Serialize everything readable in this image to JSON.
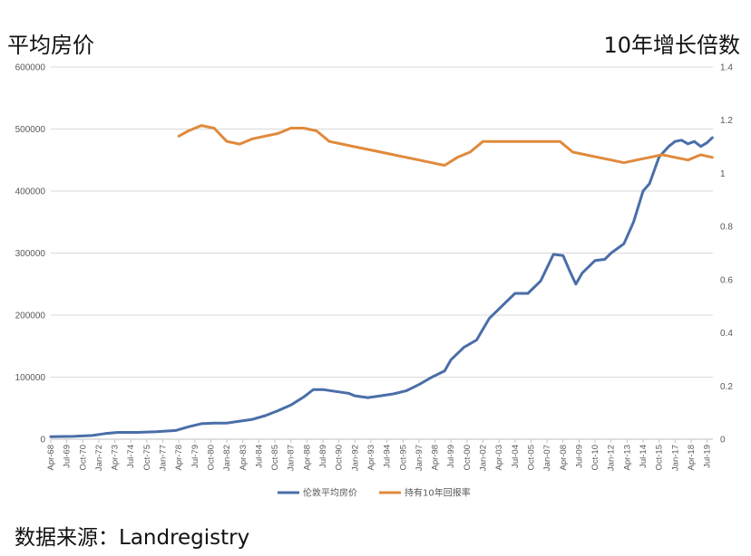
{
  "titles": {
    "left": "平均房价",
    "right": "10年增长倍数",
    "source": "数据来源：Landregistry"
  },
  "colors": {
    "price": "#4a6ea8",
    "ratio": "#e08a3c",
    "grid": "#d9d9d9",
    "tick": "#595959"
  },
  "chart_data": {
    "type": "line",
    "title": "",
    "x_start": "1968-04",
    "x_end": "2019-12",
    "x_ticks": [
      "Apr-68",
      "Jul-69",
      "Oct-70",
      "Jan-72",
      "Apr-73",
      "Jul-74",
      "Oct-75",
      "Jan-77",
      "Apr-78",
      "Jul-79",
      "Oct-80",
      "Jan-82",
      "Apr-83",
      "Jul-84",
      "Oct-85",
      "Jan-87",
      "Apr-88",
      "Jul-89",
      "Oct-90",
      "Jan-92",
      "Apr-93",
      "Jul-94",
      "Oct-95",
      "Jan-97",
      "Apr-98",
      "Jul-99",
      "Oct-00",
      "Jan-02",
      "Apr-03",
      "Jul-04",
      "Oct-05",
      "Jan-07",
      "Apr-08",
      "Jul-09",
      "Oct-10",
      "Jan-12",
      "Apr-13",
      "Jul-14",
      "Oct-15",
      "Jan-17",
      "Apr-18",
      "Jul-19"
    ],
    "y_left": {
      "min": 0,
      "max": 600000,
      "ticks": [
        "0",
        "100000",
        "200000",
        "300000",
        "400000",
        "500000",
        "600000"
      ]
    },
    "y_right": {
      "min": 0,
      "max": 1.4,
      "ticks": [
        "0",
        "0.2",
        "0.4",
        "0.6",
        "0.8",
        "1",
        "1.2",
        "1.4"
      ]
    },
    "series": [
      {
        "name": "伦敦平均房价",
        "axis": "left",
        "color": "#4a6ea8",
        "points": [
          [
            1968.25,
            4000
          ],
          [
            1970.0,
            4500
          ],
          [
            1971.5,
            6000
          ],
          [
            1972.5,
            9000
          ],
          [
            1973.5,
            11000
          ],
          [
            1975.0,
            11000
          ],
          [
            1976.5,
            12000
          ],
          [
            1978.0,
            14000
          ],
          [
            1979.0,
            20000
          ],
          [
            1980.0,
            25000
          ],
          [
            1981.0,
            26000
          ],
          [
            1982.0,
            26000
          ],
          [
            1983.0,
            29000
          ],
          [
            1984.0,
            32000
          ],
          [
            1985.0,
            38000
          ],
          [
            1986.0,
            46000
          ],
          [
            1987.0,
            55000
          ],
          [
            1988.0,
            68000
          ],
          [
            1988.75,
            80000
          ],
          [
            1989.5,
            80000
          ],
          [
            1990.5,
            77000
          ],
          [
            1991.5,
            74000
          ],
          [
            1992.0,
            70000
          ],
          [
            1993.0,
            67000
          ],
          [
            1994.0,
            70000
          ],
          [
            1995.0,
            73000
          ],
          [
            1996.0,
            78000
          ],
          [
            1997.0,
            88000
          ],
          [
            1998.0,
            100000
          ],
          [
            1999.0,
            110000
          ],
          [
            1999.5,
            128000
          ],
          [
            2000.5,
            148000
          ],
          [
            2001.5,
            160000
          ],
          [
            2002.5,
            195000
          ],
          [
            2003.5,
            215000
          ],
          [
            2004.5,
            235000
          ],
          [
            2005.5,
            235000
          ],
          [
            2006.5,
            255000
          ],
          [
            2007.5,
            298000
          ],
          [
            2008.25,
            296000
          ],
          [
            2008.75,
            272000
          ],
          [
            2009.25,
            250000
          ],
          [
            2009.75,
            268000
          ],
          [
            2010.75,
            288000
          ],
          [
            2011.5,
            290000
          ],
          [
            2012.0,
            300000
          ],
          [
            2013.0,
            315000
          ],
          [
            2013.75,
            350000
          ],
          [
            2014.5,
            400000
          ],
          [
            2015.0,
            412000
          ],
          [
            2015.75,
            455000
          ],
          [
            2016.5,
            472000
          ],
          [
            2017.0,
            480000
          ],
          [
            2017.5,
            482000
          ],
          [
            2018.0,
            476000
          ],
          [
            2018.5,
            480000
          ],
          [
            2019.0,
            472000
          ],
          [
            2019.5,
            478000
          ],
          [
            2019.9,
            486000
          ]
        ]
      },
      {
        "name": "持有10年回报率",
        "axis": "right",
        "color": "#e08a3c",
        "points": [
          [
            1978.25,
            1.14
          ],
          [
            1979.0,
            1.16
          ],
          [
            1980.0,
            1.18
          ],
          [
            1981.0,
            1.17
          ],
          [
            1982.0,
            1.12
          ],
          [
            1983.0,
            1.11
          ],
          [
            1984.0,
            1.13
          ],
          [
            1985.0,
            1.14
          ],
          [
            1986.0,
            1.15
          ],
          [
            1987.0,
            1.17
          ],
          [
            1988.0,
            1.17
          ],
          [
            1989.0,
            1.16
          ],
          [
            1990.0,
            1.12
          ],
          [
            1991.0,
            1.11
          ],
          [
            1992.0,
            1.1
          ],
          [
            1993.0,
            1.09
          ],
          [
            1994.0,
            1.08
          ],
          [
            1995.0,
            1.07
          ],
          [
            1996.0,
            1.06
          ],
          [
            1997.0,
            1.05
          ],
          [
            1998.0,
            1.04
          ],
          [
            1999.0,
            1.03
          ],
          [
            2000.0,
            1.06
          ],
          [
            2001.0,
            1.08
          ],
          [
            2002.0,
            1.12
          ],
          [
            2003.0,
            1.12
          ],
          [
            2004.0,
            1.12
          ],
          [
            2005.0,
            1.12
          ],
          [
            2006.0,
            1.12
          ],
          [
            2007.0,
            1.12
          ],
          [
            2008.0,
            1.12
          ],
          [
            2009.0,
            1.08
          ],
          [
            2010.0,
            1.07
          ],
          [
            2011.0,
            1.06
          ],
          [
            2012.0,
            1.05
          ],
          [
            2013.0,
            1.04
          ],
          [
            2014.0,
            1.05
          ],
          [
            2015.0,
            1.06
          ],
          [
            2016.0,
            1.07
          ],
          [
            2017.0,
            1.06
          ],
          [
            2018.0,
            1.05
          ],
          [
            2019.0,
            1.07
          ],
          [
            2019.9,
            1.06
          ]
        ]
      }
    ],
    "legend": [
      "伦敦平均房价",
      "持有10年回报率"
    ]
  }
}
